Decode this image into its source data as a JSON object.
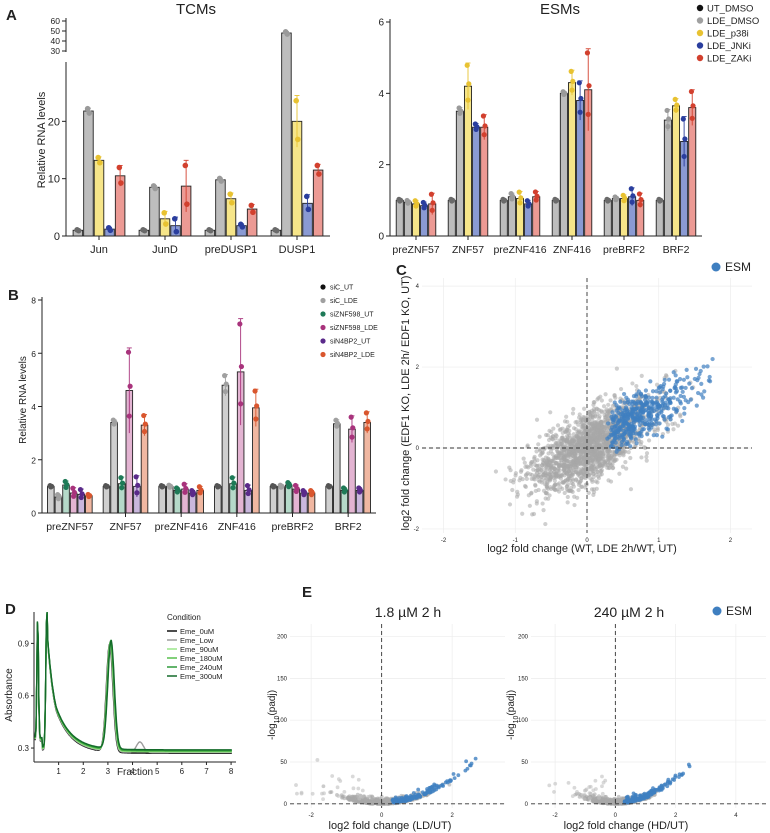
{
  "panels": {
    "A": {
      "label": "A",
      "left_title": "TCMs",
      "right_title": "ESMs",
      "ylabel": "Relative RNA levels",
      "legend": [
        {
          "label": "UT_DMSO",
          "color": "#111111"
        },
        {
          "label": "LDE_DMSO",
          "color": "#a0a0a0"
        },
        {
          "label": "LDE_p38i",
          "color": "#e8c231"
        },
        {
          "label": "LDE_JNKi",
          "color": "#2a3e9e"
        },
        {
          "label": "LDE_ZAKi",
          "color": "#d2402e"
        }
      ],
      "bar_fills": [
        "#bdbdbd",
        "#bdbdbd",
        "#f6e589",
        "#8a9ad3",
        "#ec9a94"
      ],
      "dot_colors": [
        "#6a6a6a",
        "#9a9a9a",
        "#e8c231",
        "#2a3e9e",
        "#d2402e"
      ],
      "left_chart": {
        "categories": [
          "Jun",
          "JunD",
          "preDUSP1",
          "DUSP1"
        ],
        "ylim": [
          0,
          30
        ],
        "broken_axis_ticks": [
          "30",
          "40",
          "50",
          "60"
        ],
        "yticks": [
          "0",
          "10",
          "20"
        ],
        "series": [
          {
            "name": "UT_DMSO",
            "values": [
              1,
              1,
              1,
              1
            ],
            "errors": [
              0.1,
              0.1,
              0.1,
              0.1
            ]
          },
          {
            "name": "LDE_DMSO",
            "values": [
              21.8,
              8.5,
              9.8,
              48
            ],
            "errors": [
              0.5,
              0.3,
              0.3,
              1.5
            ]
          },
          {
            "name": "LDE_p38i",
            "values": [
              13.2,
              3.0,
              6.5,
              20
            ],
            "errors": [
              0.6,
              1.3,
              1.0,
              4.5
            ]
          },
          {
            "name": "LDE_JNKi",
            "values": [
              1.2,
              1.8,
              1.8,
              5.7
            ],
            "errors": [
              0.3,
              1.5,
              0.3,
              1.5
            ]
          },
          {
            "name": "LDE_ZAKi",
            "values": [
              10.5,
              8.7,
              4.7,
              11.5
            ],
            "errors": [
              1.8,
              4.5,
              0.8,
              1.0
            ]
          }
        ]
      },
      "right_chart": {
        "categories": [
          "preZNF57",
          "ZNF57",
          "preZNF416",
          "ZNF416",
          "preBRF2",
          "BRF2"
        ],
        "ylim": [
          0,
          6
        ],
        "yticks": [
          "0",
          "2",
          "4",
          "6"
        ],
        "series": [
          {
            "name": "UT_DMSO",
            "values": [
              1,
              1,
              1,
              1,
              1,
              1
            ],
            "errors": [
              0.03,
              0.03,
              0.03,
              0.03,
              0.03,
              0.03
            ]
          },
          {
            "name": "LDE_DMSO",
            "values": [
              0.95,
              3.5,
              1.1,
              4.0,
              1.05,
              3.25
            ],
            "errors": [
              0.05,
              0.1,
              0.1,
              0.05,
              0.05,
              0.3
            ]
          },
          {
            "name": "LDE_p38i",
            "values": [
              0.9,
              4.2,
              1.05,
              4.3,
              1.05,
              3.65
            ],
            "errors": [
              0.1,
              0.65,
              0.2,
              0.35,
              0.1,
              0.2
            ]
          },
          {
            "name": "LDE_JNKi",
            "values": [
              0.85,
              3.05,
              0.9,
              3.8,
              1.1,
              2.65
            ],
            "errors": [
              0.1,
              0.1,
              0.1,
              0.55,
              0.25,
              0.7
            ]
          },
          {
            "name": "LDE_ZAKi",
            "values": [
              0.9,
              3.05,
              1.1,
              4.1,
              1.0,
              3.6
            ],
            "errors": [
              0.3,
              0.35,
              0.15,
              1.15,
              0.2,
              0.5
            ]
          }
        ]
      }
    },
    "B": {
      "label": "B",
      "ylabel": "Relative RNA levels",
      "legend": [
        {
          "label": "siC_UT",
          "color": "#111111"
        },
        {
          "label": "siC_LDE",
          "color": "#a0a0a0"
        },
        {
          "label": "siZNF598_UT",
          "color": "#1e7a57"
        },
        {
          "label": "siZNF598_LDE",
          "color": "#a8337c"
        },
        {
          "label": "siN4BP2_UT",
          "color": "#5a2a8a"
        },
        {
          "label": "siN4BP2_LDE",
          "color": "#d9562e"
        }
      ],
      "bar_fills": [
        "#cfcfcf",
        "#cfcfcf",
        "#b5d9c9",
        "#e3b4d2",
        "#c9b7dd",
        "#f0b7a1"
      ],
      "dot_colors": [
        "#555555",
        "#a0a0a0",
        "#1e7a57",
        "#a8337c",
        "#5a2a8a",
        "#d9562e"
      ],
      "chart": {
        "categories": [
          "preZNF57",
          "ZNF57",
          "preZNF416",
          "ZNF416",
          "preBRF2",
          "BRF2"
        ],
        "ylim": [
          0,
          8
        ],
        "yticks": [
          "0",
          "2",
          "4",
          "6",
          "8"
        ],
        "series": [
          {
            "name": "siC_UT",
            "values": [
              1,
              1,
              1,
              1,
              1,
              1
            ],
            "errors": [
              0.03,
              0.03,
              0.03,
              0.03,
              0.03,
              0.03
            ]
          },
          {
            "name": "siC_LDE",
            "values": [
              0.6,
              3.4,
              1.0,
              4.8,
              1.0,
              3.35
            ],
            "errors": [
              0.1,
              0.1,
              0.05,
              0.4,
              0.05,
              0.15
            ]
          },
          {
            "name": "siZNF598_UT",
            "values": [
              1.05,
              1.1,
              0.85,
              1.1,
              1.05,
              0.85
            ],
            "errors": [
              0.15,
              0.25,
              0.1,
              0.25,
              0.1,
              0.1
            ]
          },
          {
            "name": "siZNF598_LDE",
            "values": [
              0.75,
              4.6,
              0.9,
              5.3,
              0.9,
              3.15
            ],
            "errors": [
              0.2,
              1.6,
              0.2,
              2.0,
              0.15,
              0.5
            ]
          },
          {
            "name": "siN4BP2_UT",
            "values": [
              0.7,
              1.0,
              0.75,
              0.85,
              0.75,
              0.85
            ],
            "errors": [
              0.2,
              0.4,
              0.1,
              0.2,
              0.1,
              0.1
            ]
          },
          {
            "name": "siN4BP2_LDE",
            "values": [
              0.65,
              3.3,
              0.85,
              3.95,
              0.75,
              3.4
            ],
            "errors": [
              0.05,
              0.4,
              0.15,
              0.7,
              0.1,
              0.4
            ]
          }
        ]
      }
    },
    "C": {
      "label": "C",
      "legend_label": "ESM",
      "esm_color": "#3f7fc0",
      "bg_color": "#a8a8a8",
      "xlabel": "log2 fold change (WT, LDE 2h/WT, UT)",
      "ylabel": "log2 fold change (EDF1 KO, LDE 2h/ EDF1 KO, UT)",
      "chart_data": {
        "type": "scatter",
        "xlim": [
          -2.3,
          2.3
        ],
        "ylim": [
          -2.1,
          4.2
        ],
        "xticks": [
          "-2",
          "-1",
          "0",
          "1",
          "2"
        ],
        "yticks": [
          "-2",
          "0",
          "2",
          "4"
        ]
      }
    },
    "D": {
      "label": "D",
      "xlabel": "Fraction",
      "ylabel": "Absorbance",
      "legend_title": "Condition",
      "legend": [
        {
          "label": "Eme_0uM",
          "color": "#111111"
        },
        {
          "label": "Eme_Low",
          "color": "#9c9c9c"
        },
        {
          "label": "Eme_90uM",
          "color": "#9be58a"
        },
        {
          "label": "Eme_180uM",
          "color": "#58c14d"
        },
        {
          "label": "Eme_240uM",
          "color": "#2f9a3a"
        },
        {
          "label": "Eme_300uM",
          "color": "#146b2a"
        }
      ],
      "chart_data": {
        "type": "line",
        "xlim": [
          0,
          8.2
        ],
        "ylim": [
          0.22,
          1.08
        ],
        "xticks": [
          "1",
          "2",
          "3",
          "4",
          "5",
          "6",
          "7",
          "8"
        ],
        "yticks": [
          "0.3",
          "0.6",
          "0.9"
        ]
      }
    },
    "E": {
      "label": "E",
      "legend_label": "ESM",
      "esm_color": "#3f7fc0",
      "left": {
        "title": "1.8 µM 2 h",
        "xlabel": "log2 fold change (LD/UT)",
        "ylabel_main": "-log",
        "ylabel_sub": "10",
        "ylabel_tail": "(padj)",
        "xticks": [
          "-2",
          "0",
          "2"
        ],
        "yticks": [
          "0",
          "50",
          "100",
          "150",
          "200"
        ]
      },
      "right": {
        "title": "240 µM 2 h",
        "xlabel": "log2 fold change (HD/UT)",
        "ylabel_main": "-log",
        "ylabel_sub": "10",
        "ylabel_tail": "(padj)",
        "xticks": [
          "-2",
          "0",
          "2",
          "4"
        ],
        "yticks": [
          "0",
          "50",
          "100",
          "150",
          "200"
        ]
      },
      "chart_data": {
        "type": "scatter",
        "ylim": [
          -5,
          215
        ]
      }
    }
  }
}
